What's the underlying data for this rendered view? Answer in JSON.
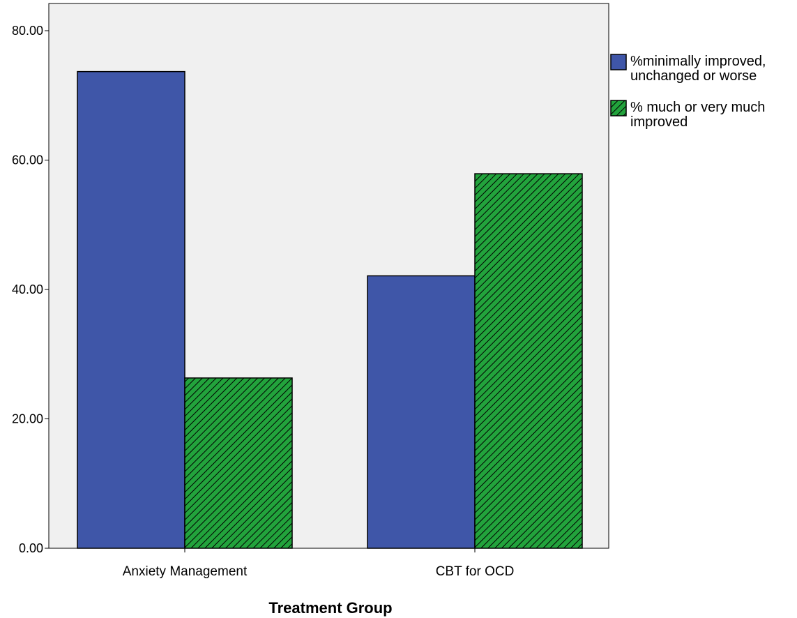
{
  "chart_data": {
    "type": "bar",
    "categories": [
      "Anxiety Management",
      "CBT for OCD"
    ],
    "series": [
      {
        "name": "%minimally improved, unchanged or worse",
        "values": [
          73.68,
          42.11
        ],
        "color": "#3f56a8",
        "pattern": "solid"
      },
      {
        "name": "% much or very much improved",
        "values": [
          26.32,
          57.89
        ],
        "color": "#22a33c",
        "pattern": "diagonal-hatch"
      }
    ],
    "title": "",
    "xlabel": "Treatment Group",
    "ylabel": "",
    "ylim": [
      0,
      80
    ],
    "yticks": [
      "0.00",
      "20.00",
      "40.00",
      "60.00",
      "80.00"
    ],
    "grid": false,
    "legend_position": "right",
    "plot_background": "#f0f0f0"
  }
}
